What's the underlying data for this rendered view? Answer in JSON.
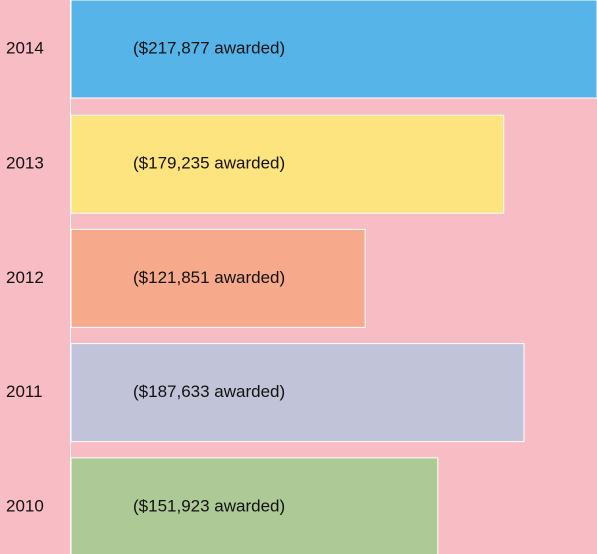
{
  "chart_data": {
    "type": "bar",
    "orientation": "horizontal",
    "categories": [
      "2014",
      "2013",
      "2012",
      "2011",
      "2010"
    ],
    "values": [
      217877,
      179235,
      121851,
      187633,
      151923
    ],
    "value_labels": [
      "($217,877 awarded)",
      "($179,235 awarded)",
      "($121,851 awarded)",
      "($187,633 awarded)",
      "($151,923 awarded)"
    ],
    "colors": [
      "#56b4e9",
      "#fde47f",
      "#f7a98b",
      "#c1c3d8",
      "#adc995"
    ]
  }
}
